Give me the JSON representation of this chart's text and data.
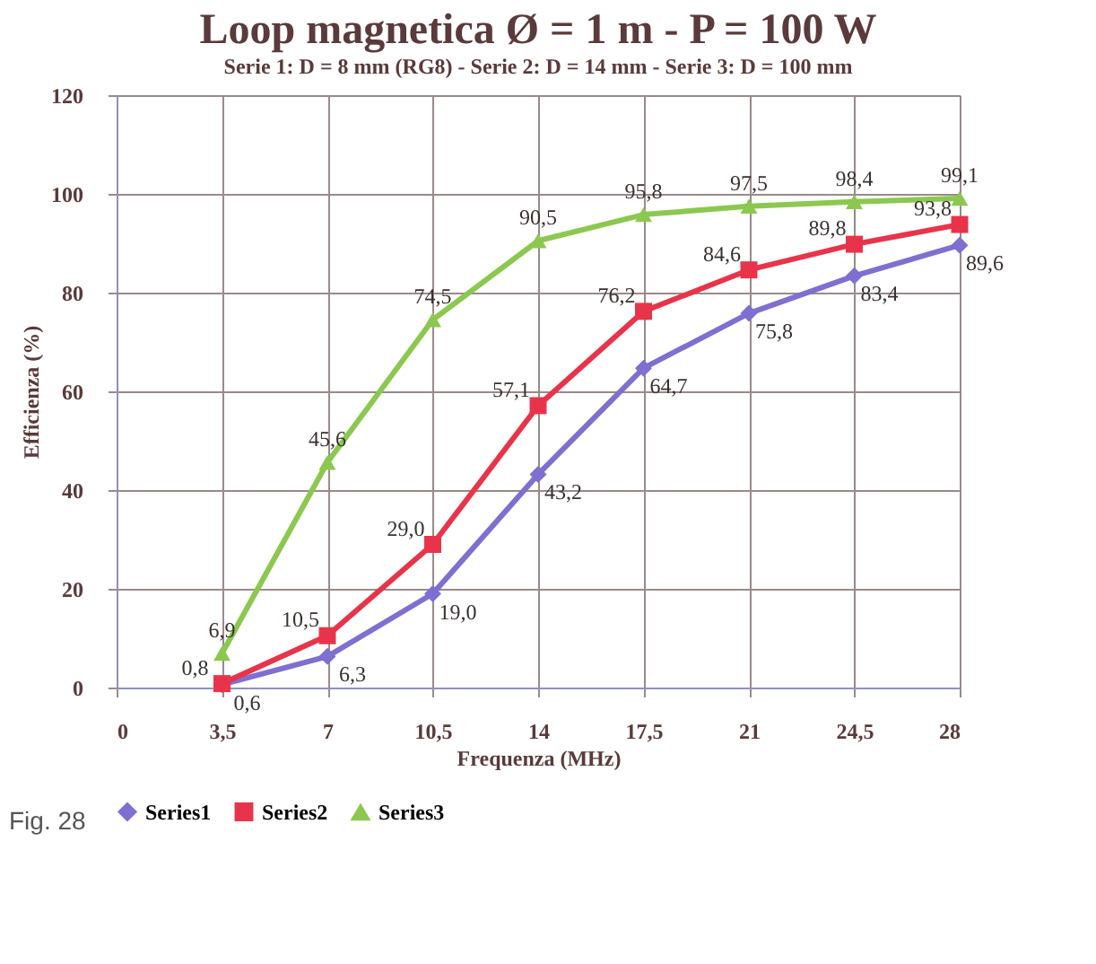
{
  "chart_data": {
    "type": "line",
    "title": "Loop magnetica Ø = 1 m - P = 100 W",
    "subtitle": "Serie 1: D = 8 mm (RG8) - Serie 2: D = 14 mm - Serie 3: D = 100 mm",
    "xlabel": "Frequenza (MHz)",
    "ylabel": "Efficienza (%)",
    "x": [
      3.5,
      7,
      10.5,
      14,
      17.5,
      21,
      24.5,
      28
    ],
    "series": [
      {
        "name": "Series1",
        "color": "#7f6fd0",
        "marker": "diamond",
        "values": [
          0.6,
          6.3,
          19.0,
          43.2,
          64.7,
          75.8,
          83.4,
          89.6
        ],
        "value_labels": [
          "0,6",
          "6,3",
          "19,0",
          "43,2",
          "64,7",
          "75,8",
          "83,4",
          "89,6"
        ]
      },
      {
        "name": "Series2",
        "color": "#e8344a",
        "marker": "square",
        "values": [
          0.8,
          10.5,
          29.0,
          57.1,
          76.2,
          84.6,
          89.8,
          93.8
        ],
        "value_labels": [
          "0,8",
          "10,5",
          "29,0",
          "57,1",
          "76,2",
          "84,6",
          "89,8",
          "93,8"
        ]
      },
      {
        "name": "Series3",
        "color": "#8cc850",
        "marker": "triangle",
        "values": [
          6.9,
          45.6,
          74.5,
          90.5,
          95.8,
          97.5,
          98.4,
          99.1
        ],
        "value_labels": [
          "6,9",
          "45,6",
          "74,5",
          "90,5",
          "95,8",
          "97,5",
          "98,4",
          "99,1"
        ]
      }
    ],
    "xlim": [
      0,
      28
    ],
    "xticks": [
      0,
      {
        "value": 3.5,
        "label": "3,5"
      },
      7,
      {
        "value": 10.5,
        "label": "10,5"
      },
      14,
      {
        "value": 17.5,
        "label": "17,5"
      },
      21,
      {
        "value": 24.5,
        "label": "24,5"
      },
      28
    ],
    "ylim": [
      0,
      120
    ],
    "yticks": [
      0,
      20,
      40,
      60,
      80,
      100,
      120
    ],
    "grid": true,
    "legend": "bottom",
    "line_style": "solid",
    "annotations": [
      "Fig. 28"
    ]
  }
}
